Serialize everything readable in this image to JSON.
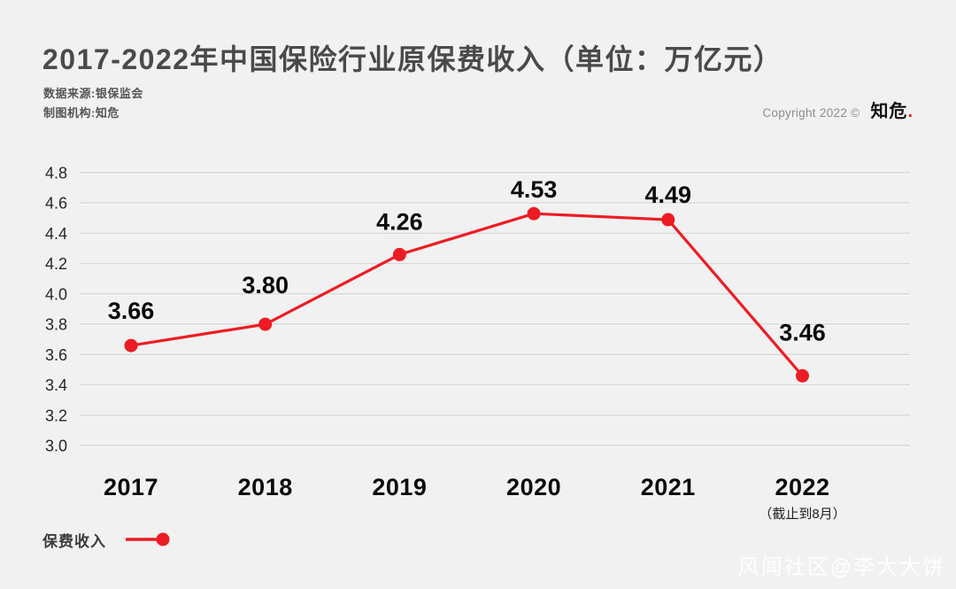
{
  "page": {
    "background": "#f1f1f1",
    "watermark": "风闻社区@李大大饼"
  },
  "header": {
    "title": "2017-2022年中国保险行业原保费收入（单位：万亿元）",
    "source_line1": "数据来源:银保监会",
    "source_line2": "制图机构:知危",
    "copyright": "Copyright 2022 ©",
    "logo_text": "知危",
    "logo_dot": "."
  },
  "legend": {
    "label": "保费收入"
  },
  "colors": {
    "accent_red": "#ed1c24",
    "grid_line": "#d7d7d7",
    "grid_highlight": "#fafafa"
  },
  "chart_data": {
    "type": "line",
    "title": "2017-2022年中国保险行业原保费收入（单位：万亿元）",
    "categories": [
      "2017",
      "2018",
      "2019",
      "2020",
      "2021",
      "2022"
    ],
    "x_note": {
      "index": 5,
      "text": "（截止到8月）"
    },
    "series": [
      {
        "name": "保费收入",
        "values": [
          3.66,
          3.8,
          4.26,
          4.53,
          4.49,
          3.46
        ]
      }
    ],
    "value_labels": [
      "3.66",
      "3.80",
      "4.26",
      "4.53",
      "4.49",
      "3.46"
    ],
    "ylim": [
      3.0,
      4.8
    ],
    "ytick_step": 0.2,
    "yticks": [
      "4.8",
      "4.6",
      "4.4",
      "4.2",
      "4.0",
      "3.8",
      "3.6",
      "3.4",
      "3.2",
      "3.0"
    ],
    "grid": true,
    "legend_position": "bottom-left",
    "label_dy": [
      -30,
      -35,
      -28,
      -18,
      -19,
      -40
    ]
  }
}
